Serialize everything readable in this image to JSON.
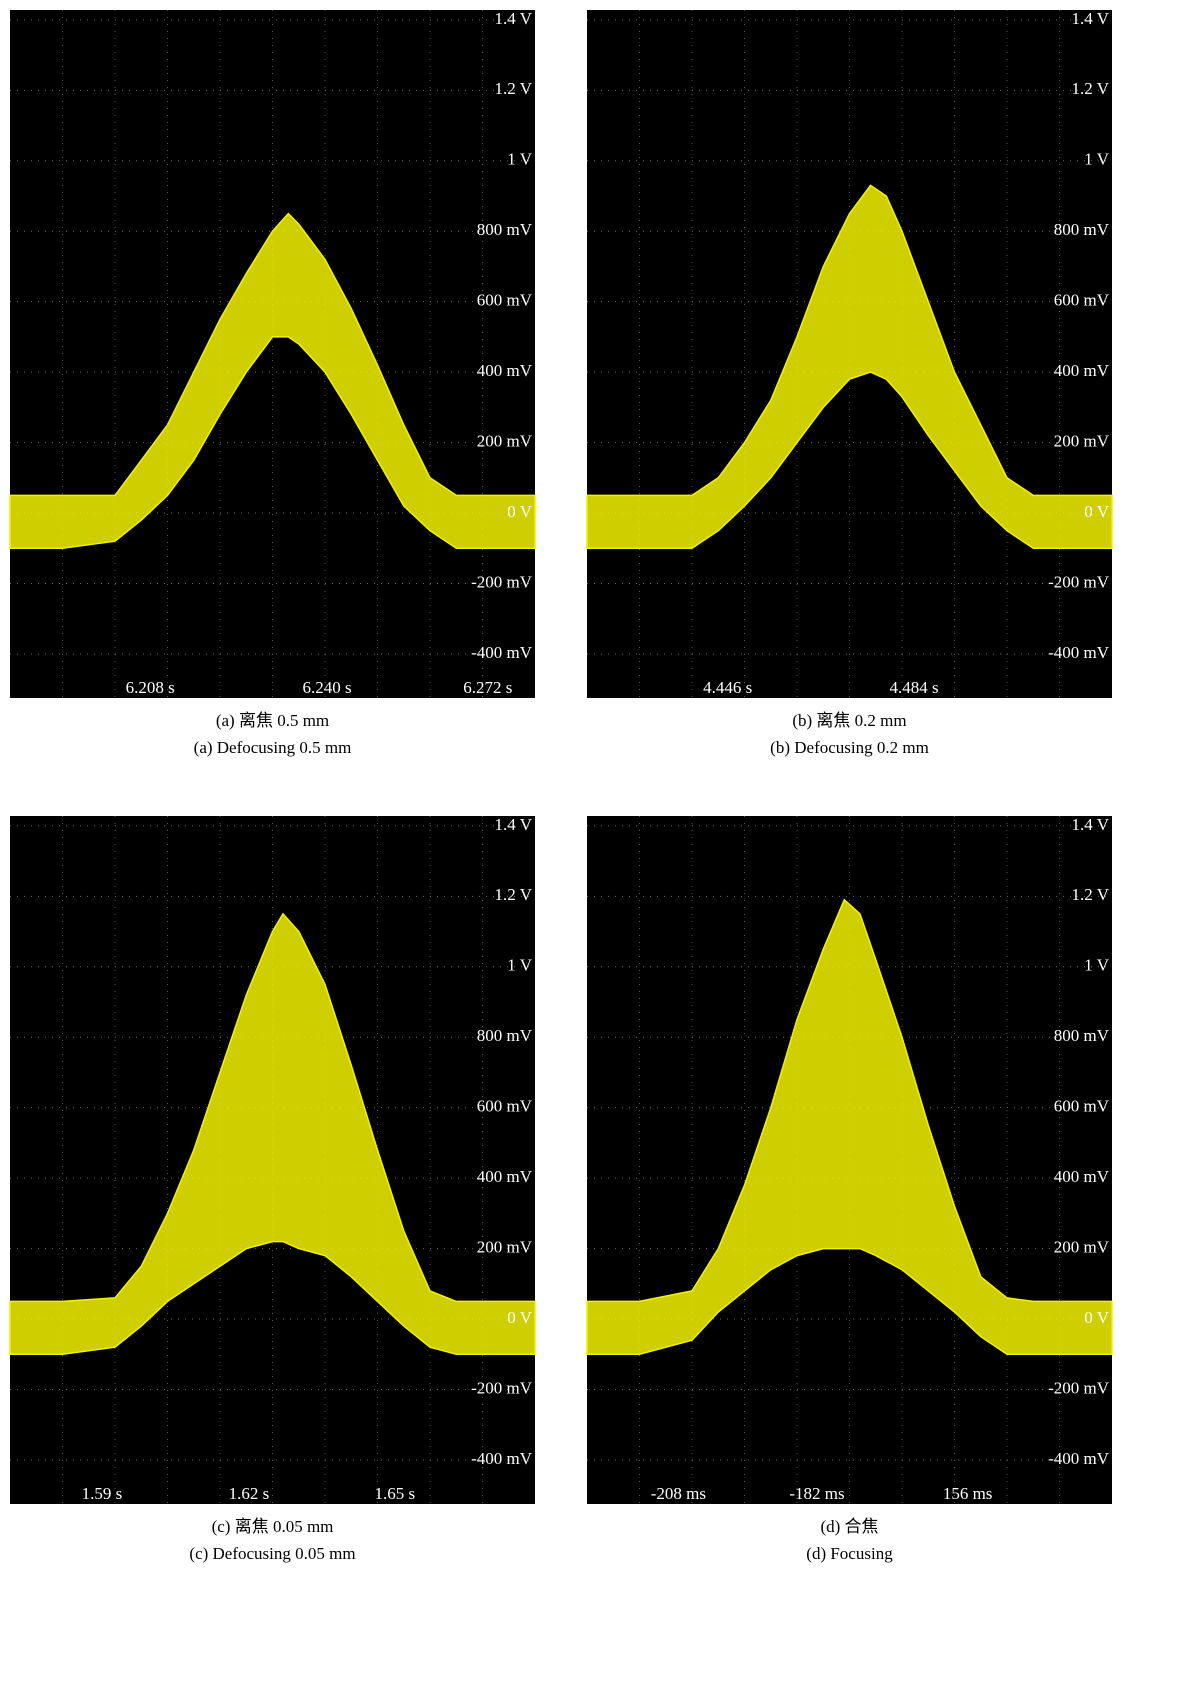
{
  "chart_data": [
    {
      "type": "band",
      "color": "#f2f200",
      "caption_zh": "(a) 离焦 0.5 mm",
      "caption_en": "(a) Defocusing 0.5 mm",
      "x_labels": [
        "6.208 s",
        "6.240 s",
        "6.272 s"
      ],
      "xlim": [
        0,
        10
      ],
      "ylim": [
        -0.525,
        1.428
      ],
      "yticks": [
        {
          "value": 1.4,
          "label": "1.4 V"
        },
        {
          "value": 1.2,
          "label": "1.2 V"
        },
        {
          "value": 1,
          "label": "1 V"
        },
        {
          "value": 0.8,
          "label": "800 mV"
        },
        {
          "value": 0.6,
          "label": "600 mV"
        },
        {
          "value": 0.4,
          "label": "400 mV"
        },
        {
          "value": 0.2,
          "label": "200 mV"
        },
        {
          "value": 0,
          "label": "0 V"
        },
        {
          "value": -0.2,
          "label": "-200 mV"
        },
        {
          "value": -0.4,
          "label": "-400 mV"
        }
      ],
      "x": [
        0,
        1,
        2,
        2.5,
        3,
        3.5,
        4,
        4.5,
        5,
        5.3,
        5.5,
        6,
        6.5,
        7,
        7.5,
        8,
        8.5,
        9,
        10
      ],
      "upper": [
        0.05,
        0.05,
        0.05,
        0.15,
        0.25,
        0.4,
        0.55,
        0.68,
        0.8,
        0.85,
        0.82,
        0.72,
        0.58,
        0.42,
        0.25,
        0.1,
        0.05,
        0.05,
        0.05
      ],
      "lower": [
        -0.1,
        -0.1,
        -0.08,
        -0.02,
        0.05,
        0.15,
        0.28,
        0.4,
        0.5,
        0.5,
        0.48,
        0.4,
        0.28,
        0.15,
        0.02,
        -0.05,
        -0.1,
        -0.1,
        -0.1
      ]
    },
    {
      "type": "band",
      "color": "#f2f200",
      "caption_zh": "(b) 离焦 0.2 mm",
      "caption_en": "(b) Defocusing 0.2 mm",
      "x_labels": [
        "4.446 s",
        "4.484 s"
      ],
      "xlim": [
        0,
        10
      ],
      "ylim": [
        -0.525,
        1.428
      ],
      "yticks": [
        {
          "value": 1.4,
          "label": "1.4 V"
        },
        {
          "value": 1.2,
          "label": "1.2 V"
        },
        {
          "value": 1,
          "label": "1 V"
        },
        {
          "value": 0.8,
          "label": "800 mV"
        },
        {
          "value": 0.6,
          "label": "600 mV"
        },
        {
          "value": 0.4,
          "label": "400 mV"
        },
        {
          "value": 0.2,
          "label": "200 mV"
        },
        {
          "value": 0,
          "label": "0 V"
        },
        {
          "value": -0.2,
          "label": "-200 mV"
        },
        {
          "value": -0.4,
          "label": "-400 mV"
        }
      ],
      "x": [
        0,
        1,
        2,
        2.5,
        3,
        3.5,
        4,
        4.5,
        5,
        5.4,
        5.7,
        6,
        6.5,
        7,
        7.5,
        8,
        8.5,
        9,
        10
      ],
      "upper": [
        0.05,
        0.05,
        0.05,
        0.1,
        0.2,
        0.32,
        0.5,
        0.7,
        0.85,
        0.93,
        0.9,
        0.8,
        0.6,
        0.4,
        0.25,
        0.1,
        0.05,
        0.05,
        0.05
      ],
      "lower": [
        -0.1,
        -0.1,
        -0.1,
        -0.05,
        0.02,
        0.1,
        0.2,
        0.3,
        0.38,
        0.4,
        0.38,
        0.33,
        0.22,
        0.12,
        0.02,
        -0.05,
        -0.1,
        -0.1,
        -0.1
      ]
    },
    {
      "type": "band",
      "color": "#f2f200",
      "caption_zh": "(c) 离焦 0.05 mm",
      "caption_en": "(c) Defocusing 0.05 mm",
      "x_labels": [
        "1.59 s",
        "1.62 s",
        "1.65 s"
      ],
      "xlim": [
        0,
        10
      ],
      "ylim": [
        -0.525,
        1.428
      ],
      "yticks": [
        {
          "value": 1.4,
          "label": "1.4 V"
        },
        {
          "value": 1.2,
          "label": "1.2 V"
        },
        {
          "value": 1,
          "label": "1 V"
        },
        {
          "value": 0.8,
          "label": "800 mV"
        },
        {
          "value": 0.6,
          "label": "600 mV"
        },
        {
          "value": 0.4,
          "label": "400 mV"
        },
        {
          "value": 0.2,
          "label": "200 mV"
        },
        {
          "value": 0,
          "label": "0 V"
        },
        {
          "value": -0.2,
          "label": "-200 mV"
        },
        {
          "value": -0.4,
          "label": "-400 mV"
        }
      ],
      "x": [
        0,
        1,
        2,
        2.5,
        3,
        3.5,
        4,
        4.5,
        5,
        5.2,
        5.5,
        6,
        6.5,
        7,
        7.5,
        8,
        8.5,
        9,
        10
      ],
      "upper": [
        0.05,
        0.05,
        0.06,
        0.15,
        0.3,
        0.48,
        0.7,
        0.92,
        1.1,
        1.15,
        1.1,
        0.95,
        0.72,
        0.48,
        0.25,
        0.08,
        0.05,
        0.05,
        0.05
      ],
      "lower": [
        -0.1,
        -0.1,
        -0.08,
        -0.02,
        0.05,
        0.1,
        0.15,
        0.2,
        0.22,
        0.22,
        0.2,
        0.18,
        0.12,
        0.05,
        -0.02,
        -0.08,
        -0.1,
        -0.1,
        -0.1
      ]
    },
    {
      "type": "band",
      "color": "#f2f200",
      "caption_zh": "(d) 合焦",
      "caption_en": "(d) Focusing",
      "x_labels": [
        "-208 ms",
        "-182 ms",
        "156 ms"
      ],
      "xlim": [
        0,
        10
      ],
      "ylim": [
        -0.525,
        1.428
      ],
      "yticks": [
        {
          "value": 1.4,
          "label": "1.4 V"
        },
        {
          "value": 1.2,
          "label": "1.2 V"
        },
        {
          "value": 1,
          "label": "1 V"
        },
        {
          "value": 0.8,
          "label": "800 mV"
        },
        {
          "value": 0.6,
          "label": "600 mV"
        },
        {
          "value": 0.4,
          "label": "400 mV"
        },
        {
          "value": 0.2,
          "label": "200 mV"
        },
        {
          "value": 0,
          "label": "0 V"
        },
        {
          "value": -0.2,
          "label": "-200 mV"
        },
        {
          "value": -0.4,
          "label": "-400 mV"
        }
      ],
      "x": [
        0,
        1,
        2,
        2.5,
        3,
        3.5,
        4,
        4.5,
        4.9,
        5.2,
        5.5,
        6,
        6.5,
        7,
        7.5,
        8,
        8.5,
        9,
        10
      ],
      "upper": [
        0.05,
        0.05,
        0.08,
        0.2,
        0.38,
        0.6,
        0.85,
        1.05,
        1.19,
        1.15,
        1.02,
        0.8,
        0.55,
        0.32,
        0.12,
        0.06,
        0.05,
        0.05,
        0.05
      ],
      "lower": [
        -0.1,
        -0.1,
        -0.06,
        0.02,
        0.08,
        0.14,
        0.18,
        0.2,
        0.2,
        0.2,
        0.18,
        0.14,
        0.08,
        0.02,
        -0.05,
        -0.1,
        -0.1,
        -0.1,
        -0.1
      ]
    }
  ]
}
